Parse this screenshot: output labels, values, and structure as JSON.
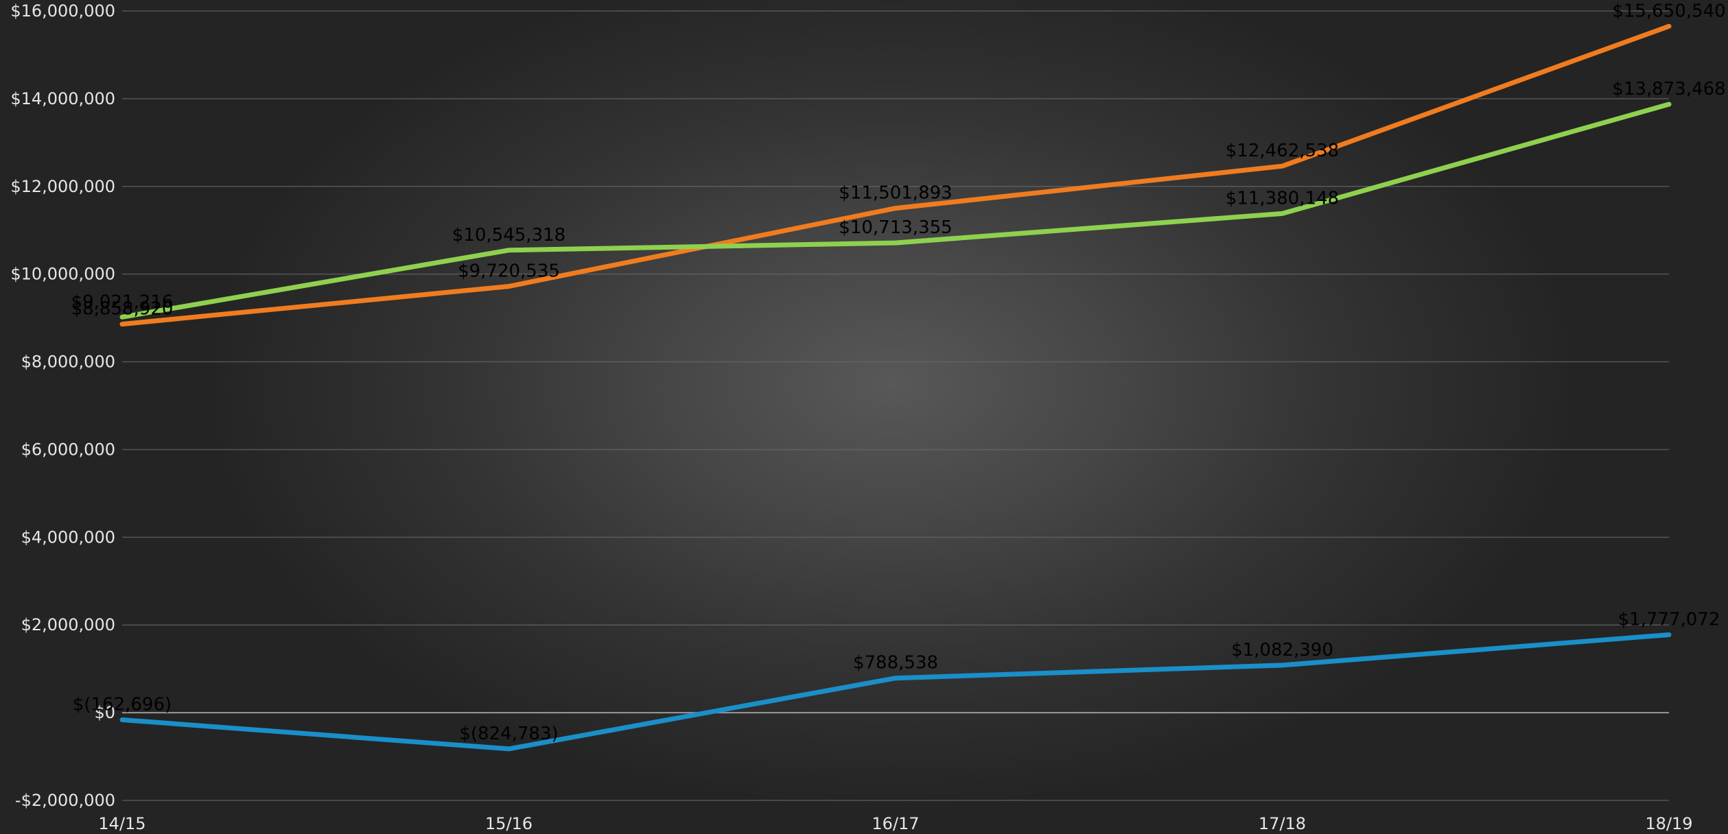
{
  "chart_data": {
    "type": "line",
    "categories": [
      "14/15",
      "15/16",
      "16/17",
      "17/18",
      "18/19"
    ],
    "ylim": [
      -2000000,
      16000000
    ],
    "y_ticks": [
      16000000,
      14000000,
      12000000,
      10000000,
      8000000,
      6000000,
      4000000,
      2000000,
      0,
      -2000000
    ],
    "y_tick_labels": [
      "$16,000,000",
      "$14,000,000",
      "$12,000,000",
      "$10,000,000",
      "$8,000,000",
      "$6,000,000",
      "$4,000,000",
      "$2,000,000",
      "$0",
      "-$2,000,000"
    ],
    "negative_tick_color": "#ff0000",
    "grid": true,
    "legend": "none",
    "series": [
      {
        "color": "#f07c1f",
        "values": [
          8858920,
          9720535,
          11501893,
          12462538,
          15650540
        ],
        "labels": [
          "$8,858,920",
          "$9,720,535",
          "$11,501,893",
          "$12,462,538",
          "$15,650,540"
        ]
      },
      {
        "color": "#8fd14f",
        "values": [
          9021216,
          10545318,
          10713355,
          11380148,
          13873468
        ],
        "labels": [
          "$9,021,216",
          "$10,545,318",
          "$10,713,355",
          "$11,380,148",
          "$13,873,468"
        ]
      },
      {
        "color": "#1a8fc8",
        "values": [
          -162696,
          -824783,
          788538,
          1082390,
          1777072
        ],
        "labels": [
          "$(162,696)",
          "$(824,783)",
          "$788,538",
          "$1,082,390",
          "$1,777,072"
        ]
      }
    ]
  }
}
